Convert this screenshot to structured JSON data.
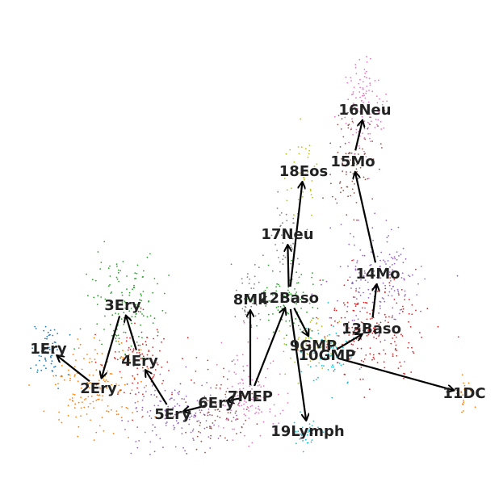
{
  "graph": {
    "nodes": [
      {
        "id": "1Ery",
        "label": "1Ery",
        "color": "#1f77b4"
      },
      {
        "id": "2Ery",
        "label": "2Ery",
        "color": "#ff7f0e"
      },
      {
        "id": "3Ery",
        "label": "3Ery",
        "color": "#2ca02c"
      },
      {
        "id": "4Ery",
        "label": "4Ery",
        "color": "#d62728"
      },
      {
        "id": "5Ery",
        "label": "5Ery",
        "color": "#9467bd"
      },
      {
        "id": "6Ery",
        "label": "6Ery",
        "color": "#8c564b"
      },
      {
        "id": "7MEP",
        "label": "7MEP",
        "color": "#e377c2"
      },
      {
        "id": "8Mk",
        "label": "8Mk",
        "color": "#7f7f7f"
      },
      {
        "id": "9GMP",
        "label": "9GMP",
        "color": "#bcbd22"
      },
      {
        "id": "10GMP",
        "label": "10GMP",
        "color": "#17becf"
      },
      {
        "id": "11DC",
        "label": "11DC",
        "color": "#ff7f0e"
      },
      {
        "id": "12Baso",
        "label": "12Baso",
        "color": "#2ca02c"
      },
      {
        "id": "13Baso",
        "label": "13Baso",
        "color": "#d62728"
      },
      {
        "id": "14Mo",
        "label": "14Mo",
        "color": "#9467bd"
      },
      {
        "id": "15Mo",
        "label": "15Mo",
        "color": "#8c564b"
      },
      {
        "id": "16Neu",
        "label": "16Neu",
        "color": "#e377c2"
      },
      {
        "id": "17Neu",
        "label": "17Neu",
        "color": "#7f7f7f"
      },
      {
        "id": "18Eos",
        "label": "18Eos",
        "color": "#bcbd22"
      },
      {
        "id": "19Lymph",
        "label": "19Lymph",
        "color": "#17becf"
      }
    ],
    "edges": [
      [
        "2Ery",
        "1Ery"
      ],
      [
        "3Ery",
        "2Ery"
      ],
      [
        "4Ery",
        "3Ery"
      ],
      [
        "5Ery",
        "4Ery"
      ],
      [
        "6Ery",
        "5Ery"
      ],
      [
        "7MEP",
        "6Ery"
      ],
      [
        "7MEP",
        "8Mk"
      ],
      [
        "7MEP",
        "12Baso"
      ],
      [
        "12Baso",
        "17Neu"
      ],
      [
        "12Baso",
        "18Eos"
      ],
      [
        "12Baso",
        "19Lymph"
      ],
      [
        "12Baso",
        "9GMP"
      ],
      [
        "10GMP",
        "13Baso"
      ],
      [
        "10GMP",
        "11DC"
      ],
      [
        "13Baso",
        "14Mo"
      ],
      [
        "14Mo",
        "15Mo"
      ],
      [
        "15Mo",
        "16Neu"
      ]
    ]
  }
}
